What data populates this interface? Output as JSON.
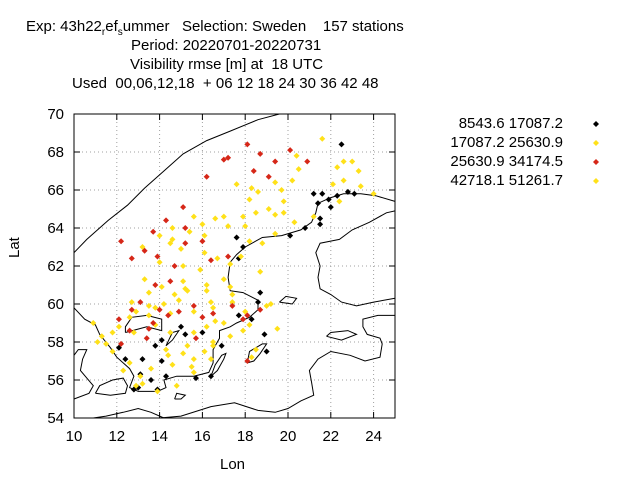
{
  "title": {
    "line1_a": "Exp: 43h22",
    "line1_sub1": "r",
    "line1_b": "ef",
    "line1_sub2": "s",
    "line1_c": "ummer   Selection: Sweden    157 stations",
    "line2": "Period: 20220701-20220731",
    "line3": "Visibility rmse [m] at  18 UTC",
    "line4": "Used  00,06,12,18  + 06 12 18 24 30 36 42 48"
  },
  "chart_data": {
    "type": "scatter",
    "xlabel": "Lon",
    "ylabel": "Lat",
    "xlim": [
      10,
      25
    ],
    "ylim": [
      54,
      70
    ],
    "xticks": [
      "10",
      "12",
      "14",
      "16",
      "18",
      "20",
      "22",
      "24"
    ],
    "yticks": [
      "54",
      "56",
      "58",
      "60",
      "62",
      "64",
      "66",
      "68",
      "70"
    ],
    "grid": true,
    "legend_placement": "right",
    "series": [
      {
        "name": "8543.6 17087.2",
        "color": "#000000",
        "points": [
          [
            22.5,
            68.4
          ],
          [
            21.6,
            65.8
          ],
          [
            22.3,
            65.7
          ],
          [
            22.8,
            65.9
          ],
          [
            23.1,
            65.8
          ],
          [
            21.9,
            65.5
          ],
          [
            21.4,
            65.3
          ],
          [
            22.0,
            65.1
          ],
          [
            21.5,
            64.5
          ],
          [
            21.5,
            64.2
          ],
          [
            20.8,
            64.0
          ],
          [
            20.1,
            63.6
          ],
          [
            17.7,
            62.4
          ],
          [
            18.7,
            60.6
          ],
          [
            18.6,
            60.1
          ],
          [
            17.7,
            59.4
          ],
          [
            18.3,
            59.2
          ],
          [
            18.9,
            58.4
          ],
          [
            16.0,
            58.5
          ],
          [
            15.2,
            58.4
          ],
          [
            14.1,
            58.1
          ],
          [
            13.8,
            57.8
          ],
          [
            12.1,
            57.7
          ],
          [
            13.2,
            57.1
          ],
          [
            13.1,
            56.3
          ],
          [
            13.6,
            56.0
          ],
          [
            14.3,
            56.2
          ],
          [
            16.4,
            56.2
          ],
          [
            19.0,
            57.5
          ],
          [
            16.9,
            57.8
          ],
          [
            15.7,
            56.1
          ],
          [
            12.8,
            55.5
          ],
          [
            13.0,
            55.6
          ],
          [
            13.9,
            55.5
          ],
          [
            17.6,
            63.5
          ],
          [
            17.9,
            63.0
          ],
          [
            12.4,
            57.1
          ],
          [
            21.2,
            65.8
          ],
          [
            15.0,
            58.8
          ],
          [
            14.1,
            57.0
          ]
        ]
      },
      {
        "name": "17087.2 25630.9",
        "color": "#ffe119",
        "points": [
          [
            21.6,
            68.7
          ],
          [
            22.6,
            67.5
          ],
          [
            22.3,
            67.2
          ],
          [
            23.0,
            67.5
          ],
          [
            23.3,
            67.0
          ],
          [
            22.1,
            66.3
          ],
          [
            22.6,
            66.5
          ],
          [
            23.4,
            66.2
          ],
          [
            20.4,
            67.8
          ],
          [
            20.5,
            67.1
          ],
          [
            20.2,
            66.5
          ],
          [
            19.4,
            66.4
          ],
          [
            19.7,
            66.0
          ],
          [
            18.6,
            65.9
          ],
          [
            18.2,
            65.5
          ],
          [
            17.6,
            66.3
          ],
          [
            19.1,
            65.0
          ],
          [
            18.5,
            64.8
          ],
          [
            17.9,
            64.6
          ],
          [
            17.2,
            64.1
          ],
          [
            16.6,
            64.5
          ],
          [
            16.0,
            64.2
          ],
          [
            15.4,
            63.8
          ],
          [
            14.6,
            63.4
          ],
          [
            14.5,
            63.2
          ],
          [
            14.0,
            63.6
          ],
          [
            13.2,
            63.0
          ],
          [
            14.0,
            62.2
          ],
          [
            15.1,
            62.0
          ],
          [
            15.9,
            61.8
          ],
          [
            16.7,
            62.4
          ],
          [
            17.3,
            62.1
          ],
          [
            17.0,
            61.3
          ],
          [
            16.2,
            61.0
          ],
          [
            15.2,
            60.8
          ],
          [
            14.7,
            60.5
          ],
          [
            14.2,
            60.0
          ],
          [
            13.5,
            59.9
          ],
          [
            12.7,
            60.1
          ],
          [
            12.6,
            59.3
          ],
          [
            13.5,
            59.4
          ],
          [
            14.5,
            59.5
          ],
          [
            15.6,
            59.6
          ],
          [
            16.5,
            59.8
          ],
          [
            17.4,
            60.1
          ],
          [
            18.0,
            59.6
          ],
          [
            17.0,
            59.0
          ],
          [
            16.2,
            58.8
          ],
          [
            15.6,
            58.5
          ],
          [
            14.5,
            58.5
          ],
          [
            13.8,
            58.9
          ],
          [
            12.8,
            58.5
          ],
          [
            11.8,
            58.5
          ],
          [
            11.3,
            58.3
          ],
          [
            11.1,
            58.0
          ],
          [
            11.8,
            57.5
          ],
          [
            12.6,
            56.9
          ],
          [
            13.6,
            56.6
          ],
          [
            14.6,
            56.8
          ],
          [
            15.6,
            57.1
          ],
          [
            16.1,
            57.5
          ],
          [
            16.5,
            57.8
          ],
          [
            15.3,
            57.8
          ],
          [
            14.3,
            57.6
          ],
          [
            13.1,
            56.2
          ],
          [
            12.9,
            55.7
          ],
          [
            14.8,
            55.7
          ],
          [
            16.4,
            57.1
          ],
          [
            18.5,
            57.6
          ],
          [
            18.3,
            57.2
          ],
          [
            17.9,
            58.6
          ],
          [
            19.0,
            59.9
          ],
          [
            19.2,
            60.0
          ],
          [
            18.7,
            61.7
          ],
          [
            17.8,
            62.5
          ],
          [
            18.2,
            63.3
          ],
          [
            19.4,
            63.7
          ],
          [
            20.3,
            64.3
          ],
          [
            21.2,
            64.6
          ],
          [
            22.4,
            65.4
          ],
          [
            10.9,
            59.0
          ],
          [
            11.5,
            57.9
          ],
          [
            12.3,
            56.5
          ],
          [
            13.9,
            55.4
          ],
          [
            14.1,
            60.9
          ],
          [
            15.0,
            62.9
          ],
          [
            16.1,
            63.6
          ],
          [
            13.3,
            61.3
          ],
          [
            12.1,
            58.8
          ],
          [
            14.9,
            60.2
          ],
          [
            15.1,
            57.4
          ],
          [
            16.4,
            60.1
          ],
          [
            17.4,
            60.5
          ],
          [
            18.2,
            58.9
          ],
          [
            19.4,
            64.7
          ],
          [
            18.0,
            64.1
          ],
          [
            17.0,
            64.6
          ],
          [
            18.8,
            63.2
          ],
          [
            19.8,
            65.4
          ],
          [
            15.6,
            64.6
          ],
          [
            19.5,
            58.7
          ],
          [
            15.6,
            56.4
          ],
          [
            24.0,
            65.8
          ],
          [
            12.9,
            59.6
          ],
          [
            13.5,
            60.6
          ],
          [
            16.1,
            62.7
          ],
          [
            16.6,
            59.1
          ],
          [
            17.3,
            58.3
          ],
          [
            15.3,
            60.7
          ],
          [
            14.6,
            64.0
          ]
        ]
      },
      {
        "name": "25630.9 34174.5",
        "color": "#d62718",
        "points": [
          [
            18.1,
            68.4
          ],
          [
            20.1,
            68.1
          ],
          [
            18.7,
            67.9
          ],
          [
            17.2,
            67.7
          ],
          [
            19.4,
            67.5
          ],
          [
            18.4,
            67.0
          ],
          [
            17.0,
            67.6
          ],
          [
            16.2,
            66.7
          ],
          [
            20.9,
            67.5
          ],
          [
            19.1,
            66.7
          ],
          [
            15.1,
            65.1
          ],
          [
            14.3,
            64.4
          ],
          [
            15.2,
            64.0
          ],
          [
            13.7,
            63.8
          ],
          [
            12.2,
            63.3
          ],
          [
            15.2,
            63.2
          ],
          [
            16.0,
            63.3
          ],
          [
            13.3,
            62.8
          ],
          [
            12.7,
            62.4
          ],
          [
            13.9,
            62.5
          ],
          [
            14.7,
            62.0
          ],
          [
            16.4,
            62.3
          ],
          [
            17.2,
            62.5
          ],
          [
            14.5,
            61.2
          ],
          [
            13.8,
            61.0
          ],
          [
            13.1,
            60.1
          ],
          [
            12.7,
            59.7
          ],
          [
            12.1,
            59.2
          ],
          [
            12.6,
            58.6
          ],
          [
            13.5,
            58.7
          ],
          [
            14.4,
            59.4
          ],
          [
            16.5,
            59.5
          ],
          [
            17.4,
            59.9
          ],
          [
            16.0,
            59.3
          ],
          [
            14.0,
            59.7
          ],
          [
            12.2,
            57.9
          ],
          [
            13.4,
            58.2
          ],
          [
            15.7,
            58.2
          ],
          [
            18.1,
            59.4
          ],
          [
            18.1,
            57.0
          ],
          [
            13.7,
            59.0
          ],
          [
            14.9,
            59.6
          ],
          [
            17.9,
            59.2
          ],
          [
            18.7,
            59.7
          ],
          [
            15.6,
            59.9
          ]
        ]
      },
      {
        "name": "42718.1 51261.7",
        "color": "#ffe119",
        "points": [
          [
            15.1,
            61.2
          ],
          [
            13.8,
            59.8
          ],
          [
            17.3,
            60.9
          ],
          [
            16.5,
            58.0
          ],
          [
            15.5,
            56.7
          ],
          [
            14.4,
            57.3
          ],
          [
            13.2,
            55.8
          ],
          [
            16.2,
            60.7
          ],
          [
            19.8,
            64.8
          ],
          [
            18.3,
            66.1
          ]
        ]
      }
    ]
  },
  "map": {
    "background": "coastline outline, no fill"
  }
}
